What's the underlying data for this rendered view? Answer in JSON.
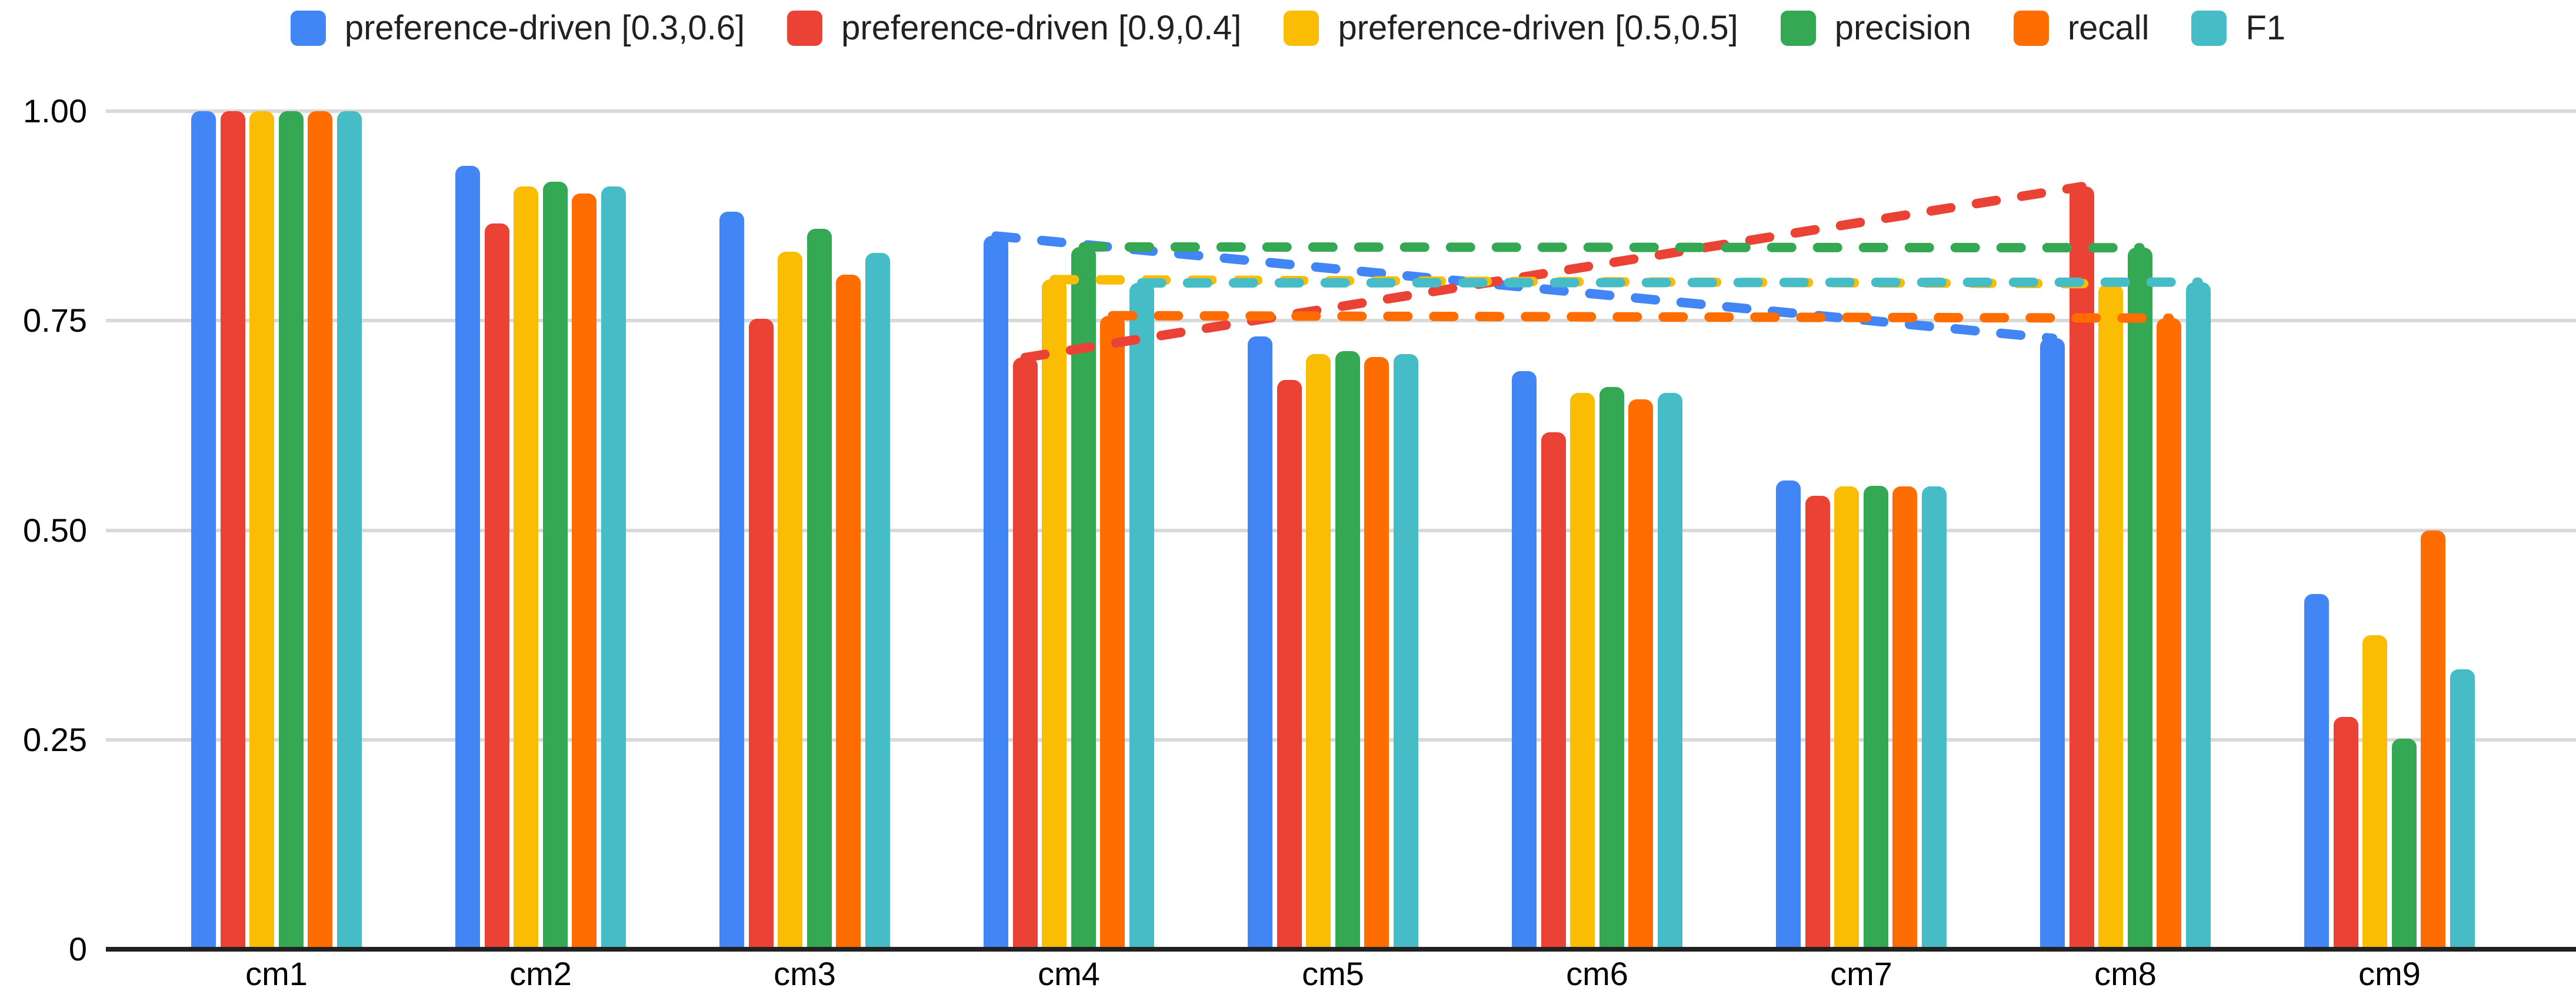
{
  "chart_data": {
    "type": "bar",
    "title": "",
    "xlabel": "",
    "ylabel": "",
    "ylim": [
      0,
      1
    ],
    "grid": true,
    "legend_position": "top",
    "background_color": "#ffffff",
    "gridline_color": "#d9d9d9",
    "zero_line_color": "#212121",
    "text_color": "#000000",
    "legend_text_color": "#202124",
    "categories": [
      "cm1",
      "cm2",
      "cm3",
      "cm4",
      "cm5",
      "cm6",
      "cm7",
      "cm8",
      "cm9"
    ],
    "yticks": [
      {
        "value": 1.0,
        "label": "1.00"
      },
      {
        "value": 0.75,
        "label": "0.75"
      },
      {
        "value": 0.5,
        "label": "0.50"
      },
      {
        "value": 0.25,
        "label": "0.25"
      },
      {
        "value": 0.0,
        "label": "0"
      }
    ],
    "series": [
      {
        "key": "pref-driven-03-06",
        "name": "preference-driven [0.3,0.6]",
        "color": "#4285F4",
        "values": [
          1.0,
          0.935,
          0.88,
          0.851,
          0.731,
          0.69,
          0.559,
          0.729,
          0.424
        ]
      },
      {
        "key": "pref-driven-09-04",
        "name": "preference-driven [0.9,0.4]",
        "color": "#EA4335",
        "values": [
          1.0,
          0.866,
          0.752,
          0.706,
          0.679,
          0.617,
          0.541,
          0.91,
          0.277
        ]
      },
      {
        "key": "pref-driven-05-05",
        "name": "preference-driven [0.5,0.5]",
        "color": "#FBBC04",
        "values": [
          1.0,
          0.91,
          0.832,
          0.799,
          0.71,
          0.664,
          0.552,
          0.794,
          0.375
        ]
      },
      {
        "key": "precision",
        "name": "precision",
        "color": "#34A853",
        "values": [
          1.0,
          0.916,
          0.86,
          0.838,
          0.714,
          0.671,
          0.553,
          0.837,
          0.251
        ]
      },
      {
        "key": "recall",
        "name": "recall",
        "color": "#FF6D01",
        "values": [
          1.0,
          0.902,
          0.805,
          0.756,
          0.707,
          0.656,
          0.552,
          0.753,
          0.5
        ]
      },
      {
        "key": "f1",
        "name": "F1",
        "color": "#46BDC6",
        "values": [
          1.0,
          0.91,
          0.831,
          0.795,
          0.71,
          0.664,
          0.552,
          0.796,
          0.334
        ]
      }
    ],
    "connectors": {
      "style": "dashed",
      "from_category": "cm4",
      "to_category": "cm8",
      "from_category_index": 3,
      "to_category_index": 7,
      "applies_to": "all-series",
      "note": "dashed line per series linking its cm4 bar top to its cm8 bar top"
    }
  }
}
